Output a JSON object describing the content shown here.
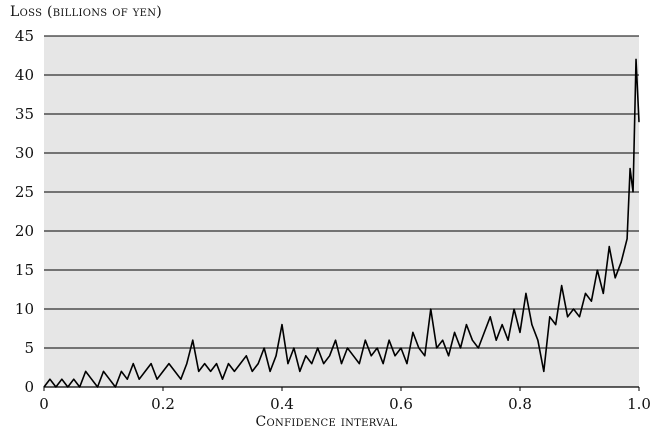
{
  "chart_data": {
    "type": "line",
    "ylabel": "Loss (billions of yen)",
    "xlabel": "Confidence interval",
    "xlim": [
      0,
      1.0
    ],
    "ylim": [
      0,
      45
    ],
    "xticks": [
      0,
      0.2,
      0.4,
      0.6,
      0.8,
      1.0
    ],
    "xtick_labels": [
      "0",
      "0.2",
      "0.4",
      "0.6",
      "0.8",
      "1.0"
    ],
    "yticks": [
      0,
      5,
      10,
      15,
      20,
      25,
      30,
      35,
      40,
      45
    ],
    "ytick_labels": [
      "0",
      "5",
      "10",
      "15",
      "20",
      "25",
      "30",
      "35",
      "40",
      "45"
    ],
    "grid": "horizontal",
    "plot_background": "#e6e6e6",
    "line_color": "#000000",
    "series": [
      {
        "x": [
          0.0,
          0.01,
          0.02,
          0.03,
          0.04,
          0.05,
          0.06,
          0.07,
          0.08,
          0.09,
          0.1,
          0.11,
          0.12,
          0.13,
          0.14,
          0.15,
          0.16,
          0.17,
          0.18,
          0.19,
          0.2,
          0.21,
          0.22,
          0.23,
          0.24,
          0.25,
          0.26,
          0.27,
          0.28,
          0.29,
          0.3,
          0.31,
          0.32,
          0.33,
          0.34,
          0.35,
          0.36,
          0.37,
          0.38,
          0.39,
          0.4,
          0.41,
          0.42,
          0.43,
          0.44,
          0.45,
          0.46,
          0.47,
          0.48,
          0.49,
          0.5,
          0.51,
          0.52,
          0.53,
          0.54,
          0.55,
          0.56,
          0.57,
          0.58,
          0.59,
          0.6,
          0.61,
          0.62,
          0.63,
          0.64,
          0.65,
          0.66,
          0.67,
          0.68,
          0.69,
          0.7,
          0.71,
          0.72,
          0.73,
          0.74,
          0.75,
          0.76,
          0.77,
          0.78,
          0.79,
          0.8,
          0.81,
          0.82,
          0.83,
          0.84,
          0.85,
          0.86,
          0.87,
          0.88,
          0.89,
          0.9,
          0.91,
          0.92,
          0.93,
          0.94,
          0.95,
          0.96,
          0.97,
          0.98,
          0.985,
          0.99,
          0.995,
          1.0
        ],
        "y": [
          0,
          1,
          0,
          1,
          0,
          1,
          0,
          2,
          1,
          0,
          2,
          1,
          0,
          2,
          1,
          3,
          1,
          2,
          3,
          1,
          2,
          3,
          2,
          1,
          3,
          6,
          2,
          3,
          2,
          3,
          1,
          3,
          2,
          3,
          4,
          2,
          3,
          5,
          2,
          4,
          8,
          3,
          5,
          2,
          4,
          3,
          5,
          3,
          4,
          6,
          3,
          5,
          4,
          3,
          6,
          4,
          5,
          3,
          6,
          4,
          5,
          3,
          7,
          5,
          4,
          10,
          5,
          6,
          4,
          7,
          5,
          8,
          6,
          5,
          7,
          9,
          6,
          8,
          6,
          10,
          7,
          12,
          8,
          6,
          2,
          9,
          8,
          13,
          9,
          10,
          9,
          12,
          11,
          15,
          12,
          18,
          14,
          16,
          19,
          28,
          25,
          42,
          34
        ]
      }
    ]
  }
}
